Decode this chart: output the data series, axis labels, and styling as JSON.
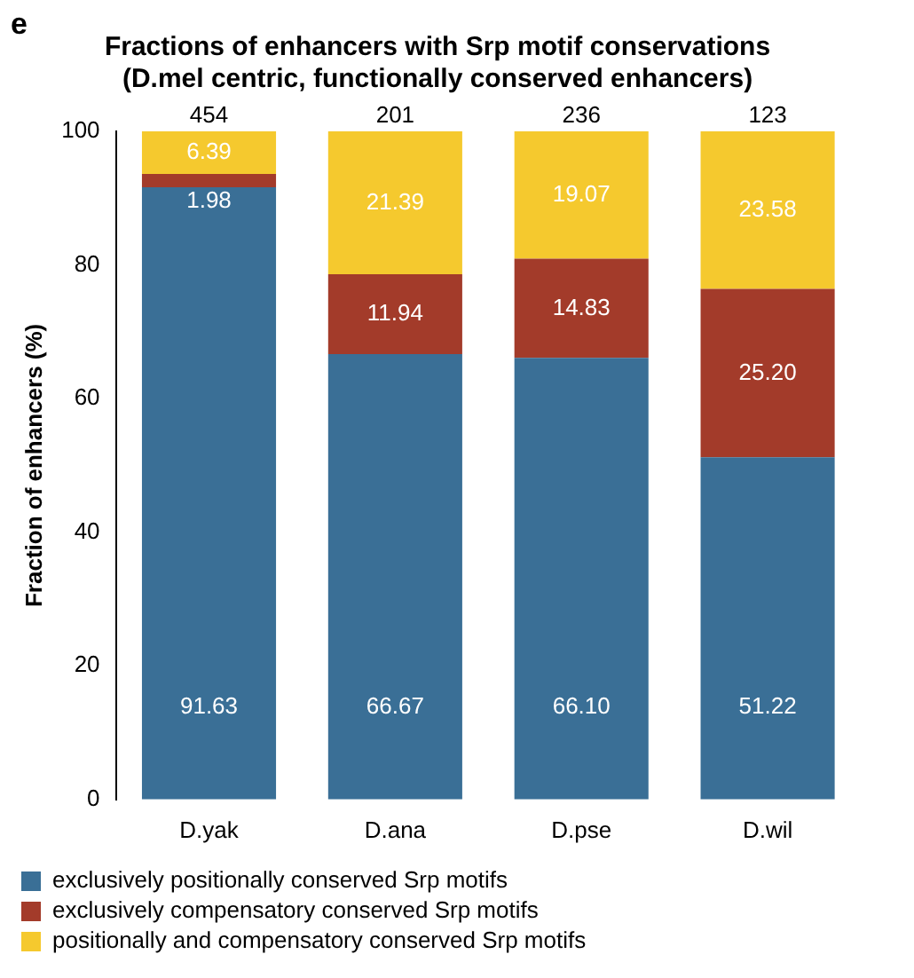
{
  "chart_data": {
    "type": "bar",
    "title": "Fractions of enhancers with Srp motif conservations\n(D.mel centric, functionally conserved enhancers)",
    "ylabel": "Fraction of enhancers (%)",
    "annotations": [
      "e",
      {
        "text": "454",
        "x": "D.yak",
        "y": 100
      },
      {
        "text": "201",
        "x": "D.ana",
        "y": 100
      },
      {
        "text": "236",
        "x": "D.pse",
        "y": 100
      },
      {
        "text": "123",
        "x": "D.wil",
        "y": 100
      }
    ],
    "categories": [
      "D.yak",
      "D.ana",
      "D.pse",
      "D.wil"
    ],
    "series": [
      {
        "name": "exclusively positionally conserved Srp motifs",
        "color": "#3a6f96",
        "values": [
          91.63,
          66.67,
          66.1,
          51.22
        ],
        "value_labels": [
          "91.63",
          "66.67",
          "66.10",
          "51.22"
        ]
      },
      {
        "name": "exclusively compensatory conserved Srp motifs",
        "color": "#a33b2a",
        "values": [
          1.98,
          11.94,
          14.83,
          25.2
        ],
        "value_labels": [
          "1.98",
          "11.94",
          "14.83",
          "25.20"
        ]
      },
      {
        "name": "positionally and compensatory conserved Srp motifs",
        "color": "#f5c92e",
        "values": [
          6.39,
          21.39,
          19.07,
          23.58
        ],
        "value_labels": [
          "6.39",
          "21.39",
          "19.07",
          "23.58"
        ]
      }
    ],
    "stacked": true,
    "ylim": [
      0,
      100
    ],
    "yticks": [
      0,
      20,
      40,
      60,
      80,
      100
    ],
    "grid": false,
    "legend": "bottom"
  }
}
